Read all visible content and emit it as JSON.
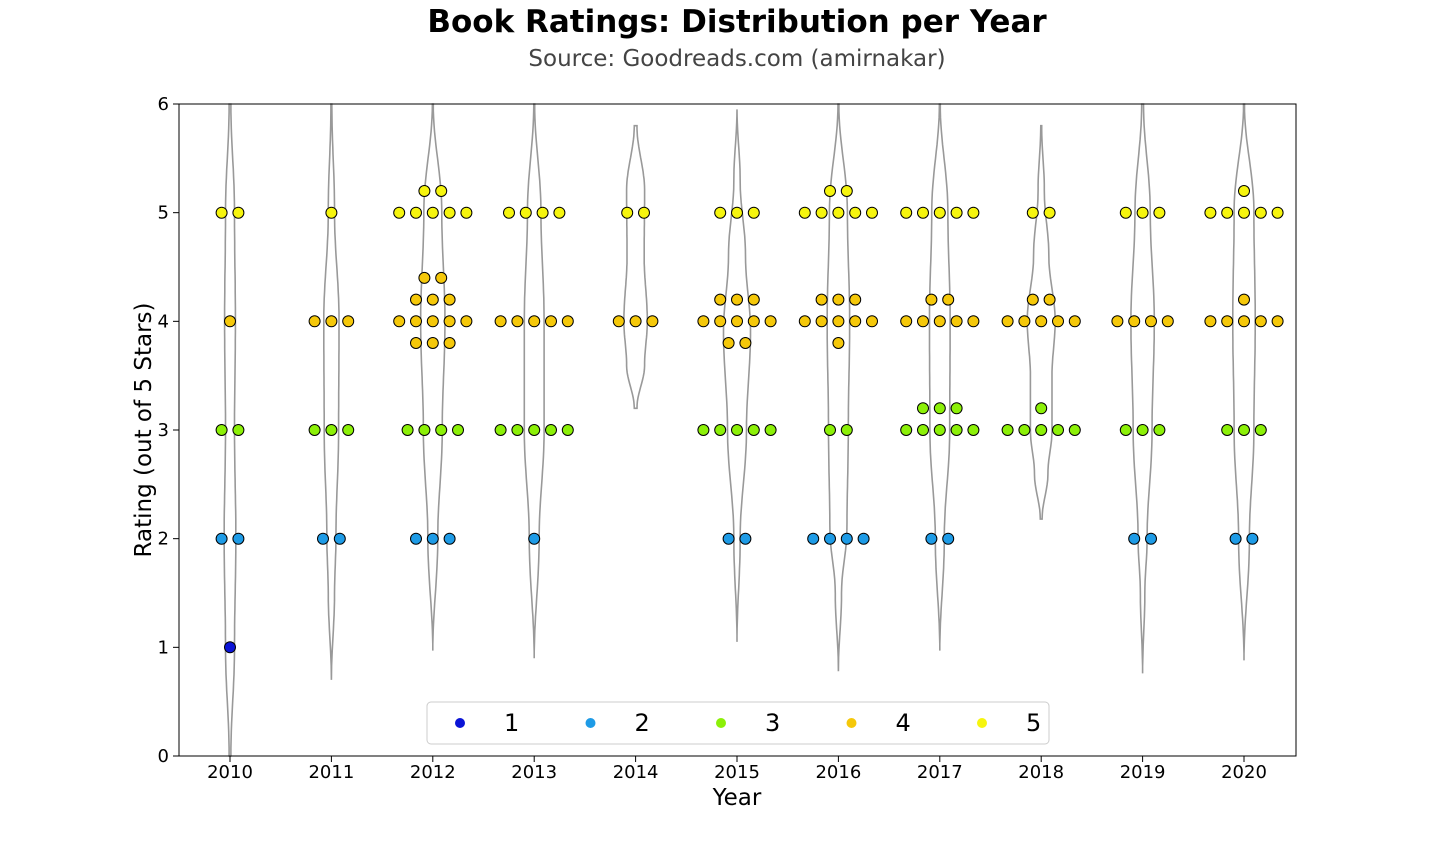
{
  "chart_data": {
    "type": "scatter",
    "title": "Book Ratings: Distribution per Year",
    "subtitle": "Source: Goodreads.com (amirnakar)",
    "xlabel": "Year",
    "ylabel": "Rating (out of 5 Stars)",
    "ylim": [
      0,
      6
    ],
    "yticks": [
      "0",
      "1",
      "2",
      "3",
      "4",
      "5",
      "6"
    ],
    "categories": [
      "2010",
      "2011",
      "2012",
      "2013",
      "2014",
      "2015",
      "2016",
      "2017",
      "2018",
      "2019",
      "2020"
    ],
    "legend": {
      "placement": "bottom-center",
      "entries": [
        {
          "label": "1",
          "color": "#0b14d6"
        },
        {
          "label": "2",
          "color": "#1e9be6"
        },
        {
          "label": "3",
          "color": "#8cf008"
        },
        {
          "label": "4",
          "color": "#f5c80a"
        },
        {
          "label": "5",
          "color": "#f6f50e"
        }
      ]
    },
    "violins": [
      {
        "year": "2010",
        "ymin": 0.0,
        "ymax": 6.0,
        "profile": [
          [
            0.0,
            0.02
          ],
          [
            1.0,
            0.1
          ],
          [
            2.0,
            0.13
          ],
          [
            3.0,
            0.1
          ],
          [
            4.0,
            0.12
          ],
          [
            5.0,
            0.1
          ],
          [
            6.0,
            0.02
          ]
        ]
      },
      {
        "year": "2011",
        "ymin": 0.7,
        "ymax": 6.0,
        "profile": [
          [
            0.7,
            0.0
          ],
          [
            1.5,
            0.07
          ],
          [
            2.0,
            0.1
          ],
          [
            3.0,
            0.16
          ],
          [
            4.0,
            0.17
          ],
          [
            5.0,
            0.07
          ],
          [
            6.0,
            0.01
          ]
        ]
      },
      {
        "year": "2012",
        "ymin": 0.97,
        "ymax": 6.0,
        "profile": [
          [
            0.97,
            0.0
          ],
          [
            2.0,
            0.11
          ],
          [
            3.0,
            0.21
          ],
          [
            4.0,
            0.27
          ],
          [
            5.0,
            0.2
          ],
          [
            6.0,
            0.01
          ]
        ]
      },
      {
        "year": "2013",
        "ymin": 0.9,
        "ymax": 6.0,
        "profile": [
          [
            0.9,
            0.0
          ],
          [
            2.0,
            0.11
          ],
          [
            3.0,
            0.22
          ],
          [
            4.0,
            0.22
          ],
          [
            5.0,
            0.15
          ],
          [
            6.0,
            0.01
          ]
        ]
      },
      {
        "year": "2014",
        "ymin": 3.2,
        "ymax": 5.8,
        "profile": [
          [
            3.2,
            0.03
          ],
          [
            3.6,
            0.2
          ],
          [
            4.0,
            0.26
          ],
          [
            4.6,
            0.19
          ],
          [
            5.2,
            0.2
          ],
          [
            5.8,
            0.03
          ]
        ]
      },
      {
        "year": "2015",
        "ymin": 1.05,
        "ymax": 5.95,
        "profile": [
          [
            1.05,
            0.0
          ],
          [
            2.0,
            0.07
          ],
          [
            3.0,
            0.21
          ],
          [
            3.9,
            0.3
          ],
          [
            4.6,
            0.19
          ],
          [
            5.3,
            0.07
          ],
          [
            5.95,
            0.0
          ]
        ]
      },
      {
        "year": "2016",
        "ymin": 0.78,
        "ymax": 6.0,
        "profile": [
          [
            0.78,
            0.0
          ],
          [
            1.5,
            0.07
          ],
          [
            2.1,
            0.19
          ],
          [
            3.0,
            0.22
          ],
          [
            4.0,
            0.25
          ],
          [
            5.0,
            0.2
          ],
          [
            6.0,
            0.01
          ]
        ]
      },
      {
        "year": "2017",
        "ymin": 0.97,
        "ymax": 6.0,
        "profile": [
          [
            0.97,
            0.0
          ],
          [
            2.0,
            0.1
          ],
          [
            3.0,
            0.22
          ],
          [
            4.0,
            0.23
          ],
          [
            5.0,
            0.18
          ],
          [
            6.0,
            0.01
          ]
        ]
      },
      {
        "year": "2018",
        "ymin": 2.18,
        "ymax": 5.8,
        "profile": [
          [
            2.18,
            0.02
          ],
          [
            2.6,
            0.15
          ],
          [
            3.0,
            0.24
          ],
          [
            3.5,
            0.24
          ],
          [
            4.0,
            0.31
          ],
          [
            4.6,
            0.17
          ],
          [
            5.2,
            0.07
          ],
          [
            5.8,
            0.01
          ]
        ]
      },
      {
        "year": "2019",
        "ymin": 0.76,
        "ymax": 6.0,
        "profile": [
          [
            0.76,
            0.0
          ],
          [
            1.5,
            0.05
          ],
          [
            2.0,
            0.1
          ],
          [
            3.0,
            0.21
          ],
          [
            4.0,
            0.26
          ],
          [
            5.0,
            0.17
          ],
          [
            6.0,
            0.02
          ]
        ]
      },
      {
        "year": "2020",
        "ymin": 0.88,
        "ymax": 6.0,
        "profile": [
          [
            0.88,
            0.0
          ],
          [
            2.0,
            0.12
          ],
          [
            3.0,
            0.22
          ],
          [
            4.0,
            0.25
          ],
          [
            5.0,
            0.22
          ],
          [
            6.0,
            0.01
          ]
        ]
      }
    ],
    "points": [
      {
        "year": "2010",
        "ratings": [
          5,
          5,
          4,
          3,
          3,
          2,
          2,
          1
        ]
      },
      {
        "year": "2011",
        "ratings": [
          5,
          4,
          4,
          4,
          3,
          3,
          3,
          2,
          2
        ]
      },
      {
        "year": "2012",
        "ratings": [
          5,
          5,
          5,
          5,
          5,
          5,
          5,
          4,
          4,
          4,
          4,
          4,
          4,
          4,
          4,
          4,
          4,
          4,
          4,
          4,
          3,
          3,
          3,
          3,
          2,
          2,
          2
        ]
      },
      {
        "year": "2013",
        "ratings": [
          5,
          5,
          5,
          5,
          4,
          4,
          4,
          4,
          4,
          3,
          3,
          3,
          3,
          3,
          2
        ]
      },
      {
        "year": "2014",
        "ratings": [
          5,
          5,
          4,
          4,
          4
        ]
      },
      {
        "year": "2015",
        "ratings": [
          5,
          5,
          5,
          4,
          4,
          4,
          4,
          4,
          4,
          4,
          4,
          4,
          4,
          3,
          3,
          3,
          3,
          3,
          2,
          2
        ]
      },
      {
        "year": "2016",
        "ratings": [
          5,
          5,
          5,
          5,
          5,
          5,
          5,
          4,
          4,
          4,
          4,
          4,
          4,
          4,
          4,
          4,
          3,
          3,
          2,
          2,
          2,
          2
        ]
      },
      {
        "year": "2017",
        "ratings": [
          5,
          5,
          5,
          5,
          5,
          4,
          4,
          4,
          4,
          4,
          4,
          4,
          3,
          3,
          3,
          3,
          3,
          3,
          3,
          3,
          2,
          2
        ]
      },
      {
        "year": "2018",
        "ratings": [
          5,
          5,
          4,
          4,
          4,
          4,
          4,
          4,
          4,
          3,
          3,
          3,
          3,
          3,
          3
        ]
      },
      {
        "year": "2019",
        "ratings": [
          5,
          5,
          5,
          4,
          4,
          4,
          4,
          3,
          3,
          3,
          2,
          2
        ]
      },
      {
        "year": "2020",
        "ratings": [
          5,
          5,
          5,
          5,
          5,
          5,
          4,
          4,
          4,
          4,
          4,
          4,
          3,
          3,
          3,
          2,
          2
        ]
      }
    ]
  }
}
